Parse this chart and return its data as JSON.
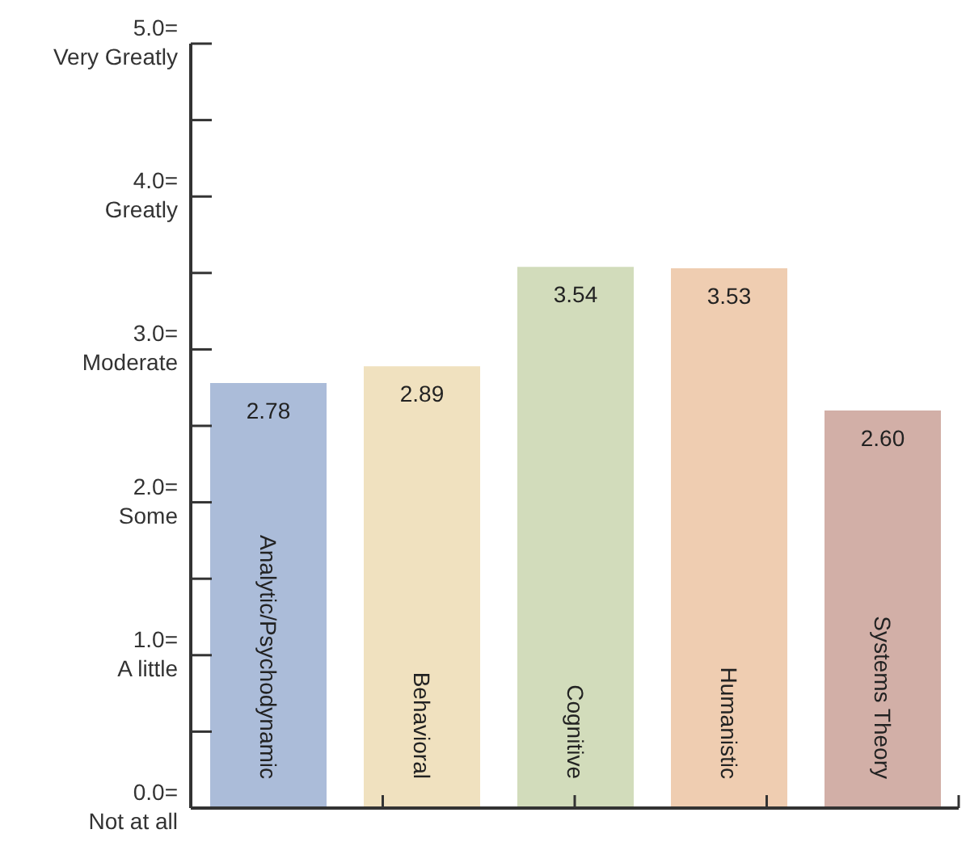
{
  "chart_data": {
    "type": "bar",
    "categories": [
      "Analytic/Psychodynamic",
      "Behavioral",
      "Cognitive",
      "Humanistic",
      "Systems Theory"
    ],
    "values": [
      2.78,
      2.89,
      3.54,
      3.53,
      2.6
    ],
    "colors": [
      "#abbcd9",
      "#f0e1bf",
      "#d2dcbb",
      "#efcdb1",
      "#d2afa7"
    ],
    "value_labels": [
      "2.78",
      "2.89",
      "3.54",
      "3.53",
      "2.60"
    ],
    "ylim": [
      0,
      5
    ],
    "yticks": [
      {
        "value": 0,
        "label": "0.0=\nNot at all"
      },
      {
        "value": 0.5,
        "label": null
      },
      {
        "value": 1,
        "label": "1.0=\nA little"
      },
      {
        "value": 1.5,
        "label": null
      },
      {
        "value": 2,
        "label": "2.0=\nSome"
      },
      {
        "value": 2.5,
        "label": null
      },
      {
        "value": 3,
        "label": "3.0=\nModerate"
      },
      {
        "value": 3.5,
        "label": null
      },
      {
        "value": 4,
        "label": "4.0=\nGreatly"
      },
      {
        "value": 4.5,
        "label": null
      },
      {
        "value": 5,
        "label": "5.0=\nVery Greatly"
      }
    ],
    "grid": false,
    "legend": false
  }
}
